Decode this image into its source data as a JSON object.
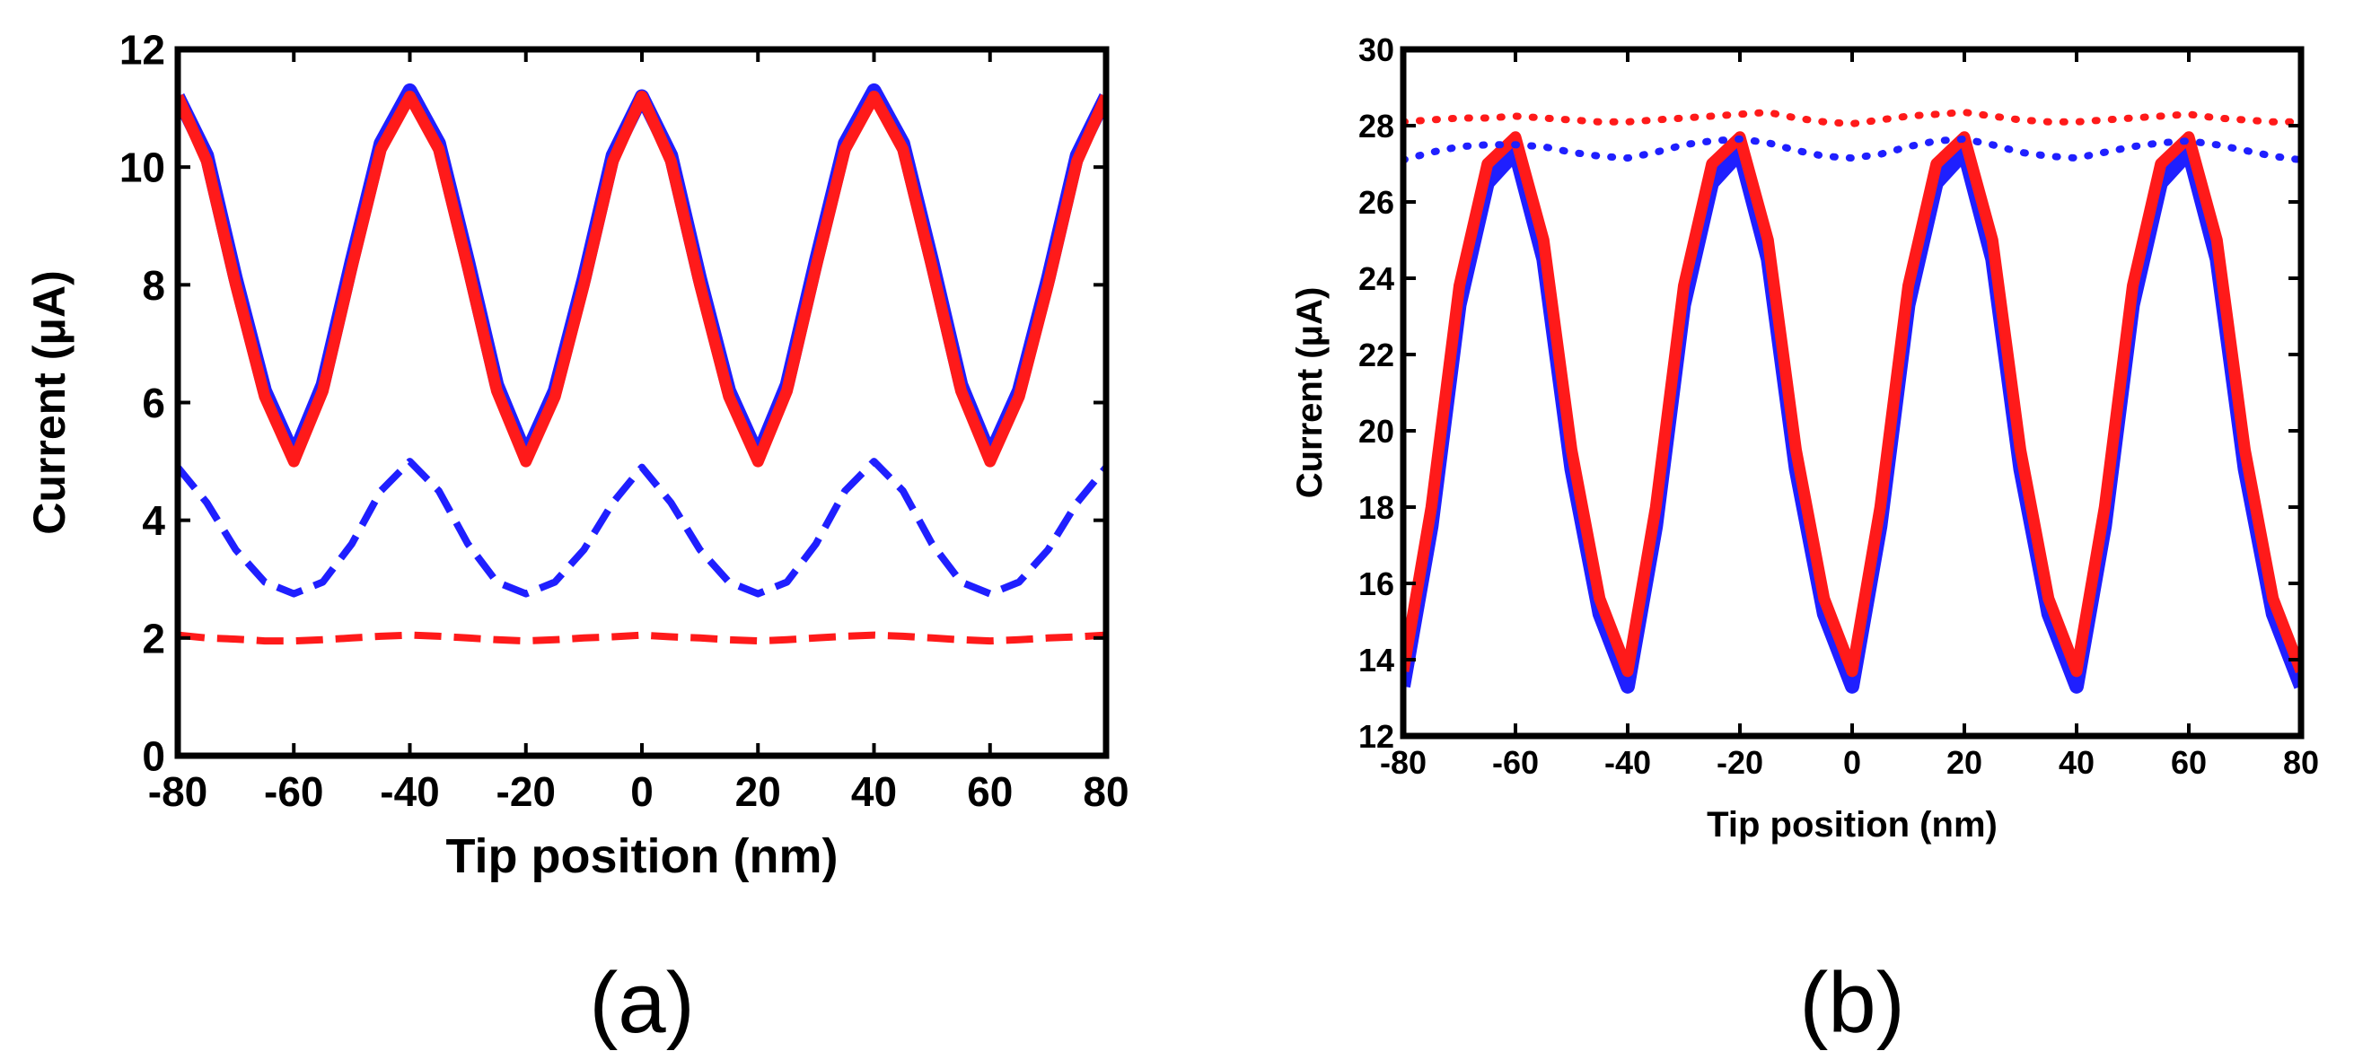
{
  "chart_data": [
    {
      "type": "line",
      "panel_label": "(a)",
      "xlabel": "Tip position (nm)",
      "ylabel": "Current (μA)",
      "xlim": [
        -80,
        80
      ],
      "ylim": [
        0,
        12
      ],
      "xticks": [
        "-80",
        "-60",
        "-40",
        "-20",
        "0",
        "20",
        "40",
        "60",
        "80"
      ],
      "yticks": [
        "0",
        "2",
        "4",
        "6",
        "8",
        "10",
        "12"
      ],
      "grid": false,
      "legend": "none",
      "x": [
        -80,
        -75,
        -70,
        -65,
        -60,
        -55,
        -50,
        -45,
        -40,
        -35,
        -30,
        -25,
        -20,
        -15,
        -10,
        -5,
        0,
        5,
        10,
        15,
        20,
        25,
        30,
        35,
        40,
        45,
        50,
        55,
        60,
        65,
        70,
        75,
        80
      ],
      "series": [
        {
          "name": "blue solid",
          "color": "#1f1fff",
          "style": "solid",
          "values": [
            11.2,
            10.2,
            8.1,
            6.2,
            5.1,
            6.3,
            8.4,
            10.4,
            11.3,
            10.4,
            8.4,
            6.3,
            5.1,
            6.2,
            8.1,
            10.2,
            11.2,
            10.2,
            8.1,
            6.2,
            5.1,
            6.3,
            8.4,
            10.4,
            11.3,
            10.4,
            8.4,
            6.3,
            5.1,
            6.2,
            8.1,
            10.2,
            11.2
          ]
        },
        {
          "name": "red solid",
          "color": "#ff1a1a",
          "style": "solid",
          "values": [
            11.2,
            10.1,
            8.0,
            6.1,
            5.0,
            6.2,
            8.3,
            10.3,
            11.2,
            10.3,
            8.3,
            6.2,
            5.0,
            6.1,
            8.0,
            10.1,
            11.2,
            10.1,
            8.0,
            6.1,
            5.0,
            6.2,
            8.3,
            10.3,
            11.2,
            10.3,
            8.3,
            6.2,
            5.0,
            6.1,
            8.0,
            10.1,
            11.2
          ]
        },
        {
          "name": "blue dashed",
          "color": "#1f1fff",
          "style": "dashed",
          "values": [
            4.9,
            4.3,
            3.5,
            2.95,
            2.75,
            2.95,
            3.6,
            4.5,
            5.0,
            4.5,
            3.6,
            2.95,
            2.75,
            2.95,
            3.5,
            4.3,
            4.9,
            4.3,
            3.5,
            2.95,
            2.75,
            2.95,
            3.6,
            4.5,
            5.0,
            4.5,
            3.6,
            2.95,
            2.75,
            2.95,
            3.5,
            4.3,
            4.9
          ]
        },
        {
          "name": "red dashed",
          "color": "#ff1a1a",
          "style": "dashed",
          "values": [
            2.05,
            2.0,
            1.98,
            1.95,
            1.95,
            1.97,
            2.0,
            2.03,
            2.05,
            2.03,
            2.0,
            1.97,
            1.95,
            1.97,
            2.0,
            2.02,
            2.05,
            2.02,
            2.0,
            1.97,
            1.95,
            1.97,
            2.0,
            2.03,
            2.05,
            2.03,
            2.0,
            1.97,
            1.95,
            1.97,
            2.0,
            2.02,
            2.05
          ]
        }
      ]
    },
    {
      "type": "line",
      "panel_label": "(b)",
      "xlabel": "Tip position (nm)",
      "ylabel": "Current (μA)",
      "xlim": [
        -80,
        80
      ],
      "ylim": [
        12,
        30
      ],
      "xticks": [
        "-80",
        "-60",
        "-40",
        "-20",
        "0",
        "20",
        "40",
        "60",
        "80"
      ],
      "yticks": [
        "12",
        "14",
        "16",
        "18",
        "20",
        "22",
        "24",
        "26",
        "28",
        "30"
      ],
      "grid": false,
      "legend": "none",
      "x": [
        -80,
        -75,
        -70,
        -65,
        -60,
        -55,
        -50,
        -45,
        -40,
        -35,
        -30,
        -25,
        -20,
        -15,
        -10,
        -5,
        0,
        5,
        10,
        15,
        20,
        25,
        30,
        35,
        40,
        45,
        50,
        55,
        60,
        65,
        70,
        75,
        80
      ],
      "series": [
        {
          "name": "blue solid",
          "color": "#1f1fff",
          "style": "solid",
          "values": [
            13.3,
            17.5,
            23.3,
            26.5,
            27.3,
            24.5,
            19.0,
            15.2,
            13.3,
            17.5,
            23.3,
            26.5,
            27.3,
            24.5,
            19.0,
            15.2,
            13.3,
            17.5,
            23.3,
            26.5,
            27.3,
            24.5,
            19.0,
            15.2,
            13.3,
            17.5,
            23.3,
            26.5,
            27.3,
            24.5,
            19.0,
            15.2,
            13.3
          ]
        },
        {
          "name": "red solid",
          "color": "#ff1a1a",
          "style": "solid",
          "values": [
            13.7,
            18.0,
            23.8,
            27.0,
            27.7,
            25.0,
            19.5,
            15.6,
            13.7,
            18.0,
            23.8,
            27.0,
            27.7,
            25.0,
            19.5,
            15.6,
            13.7,
            18.0,
            23.8,
            27.0,
            27.7,
            25.0,
            19.5,
            15.6,
            13.7,
            18.0,
            23.8,
            27.0,
            27.7,
            25.0,
            19.5,
            15.6,
            13.7
          ]
        },
        {
          "name": "blue dotted",
          "color": "#1f1fff",
          "style": "dotted",
          "values": [
            27.1,
            27.3,
            27.45,
            27.5,
            27.5,
            27.45,
            27.3,
            27.2,
            27.15,
            27.3,
            27.5,
            27.6,
            27.65,
            27.55,
            27.35,
            27.2,
            27.15,
            27.25,
            27.45,
            27.6,
            27.65,
            27.5,
            27.3,
            27.2,
            27.15,
            27.3,
            27.45,
            27.55,
            27.6,
            27.5,
            27.35,
            27.2,
            27.1
          ]
        },
        {
          "name": "red dotted",
          "color": "#ff1a1a",
          "style": "dotted",
          "values": [
            28.1,
            28.15,
            28.2,
            28.2,
            28.25,
            28.2,
            28.15,
            28.1,
            28.1,
            28.15,
            28.2,
            28.25,
            28.3,
            28.35,
            28.2,
            28.1,
            28.05,
            28.15,
            28.25,
            28.3,
            28.35,
            28.25,
            28.15,
            28.1,
            28.1,
            28.15,
            28.2,
            28.25,
            28.3,
            28.2,
            28.15,
            28.1,
            28.1
          ]
        }
      ]
    }
  ]
}
